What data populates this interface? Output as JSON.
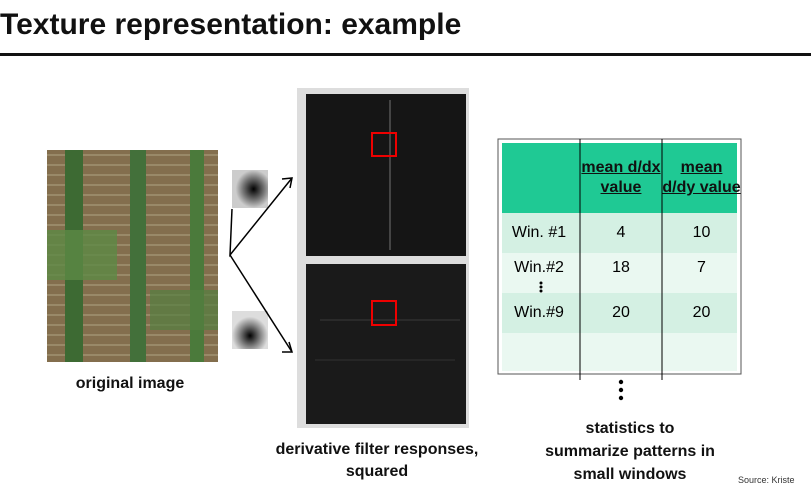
{
  "title": "Texture representation: example",
  "captions": {
    "original": "original image",
    "filter_1": "derivative filter responses,",
    "filter_2": "squared",
    "stats_1": "statistics to",
    "stats_2": "summarize patterns in",
    "stats_3": "small windows"
  },
  "table": {
    "header": [
      "mean d/dx value",
      "mean d/dy value"
    ],
    "rows": [
      [
        "Win. #1",
        "4",
        "10"
      ],
      [
        "Win.#2",
        "18",
        "7"
      ],
      [
        "Win.#9",
        "20",
        "20"
      ]
    ]
  },
  "source": "Source: Kriste"
}
